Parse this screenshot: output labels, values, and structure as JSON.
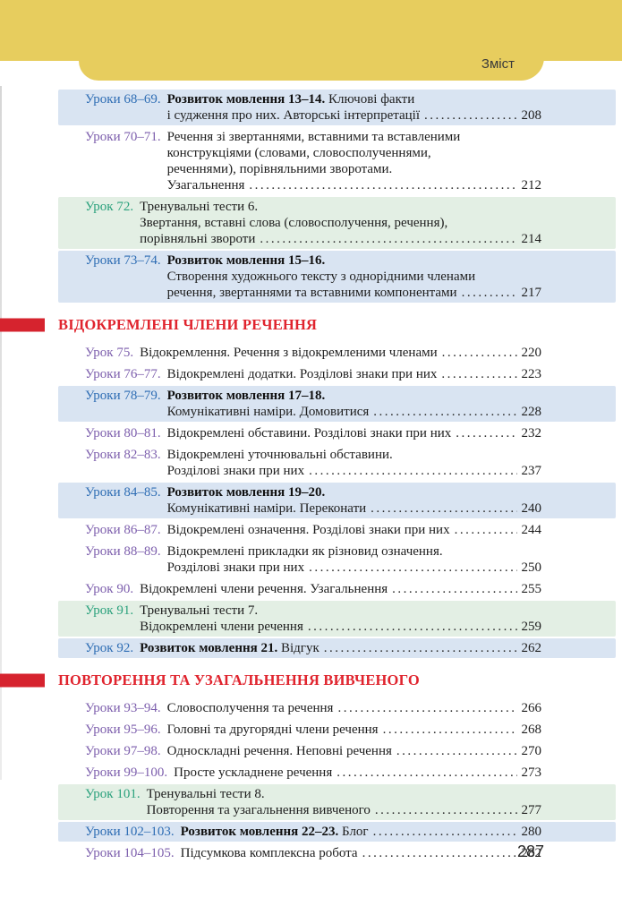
{
  "header": {
    "tab_label": "Зміст"
  },
  "colors": {
    "band_yellow": "#e7cd5e",
    "heading_red": "#e0242e",
    "marker_red": "#d6232e",
    "label_blue": "#2e6db4",
    "label_green": "#2aa17c",
    "label_purple": "#7d5fad",
    "band_blue": "#d9e4f2",
    "band_green": "#e3efe4"
  },
  "toc": {
    "groups": [
      {
        "heading": null,
        "entries": [
          {
            "label": "Уроки 68–69.",
            "type": "rm",
            "page": "208",
            "lines": [
              [
                {
                  "t": "Розвиток мовлення 13–14.",
                  "b": true
                },
                {
                  "t": " Ключові факти",
                  "b": false
                }
              ],
              [
                {
                  "t": "і судження про них. Авторські інтерпретації",
                  "b": false
                }
              ]
            ]
          },
          {
            "label": "Уроки 70–71.",
            "type": "plain",
            "page": "212",
            "lines": [
              [
                {
                  "t": "Речення зі звертаннями, вставними та вставленими",
                  "b": false
                }
              ],
              [
                {
                  "t": "конструкціями (словами, словосполученнями,",
                  "b": false
                }
              ],
              [
                {
                  "t": "реченнями), порівняльними зворотами.",
                  "b": false
                }
              ],
              [
                {
                  "t": "Узагальнення",
                  "b": false
                }
              ]
            ]
          },
          {
            "label": "Урок 72.",
            "type": "test",
            "page": "214",
            "lines": [
              [
                {
                  "t": "Тренувальні тести 6.",
                  "b": false
                }
              ],
              [
                {
                  "t": "Звертання, вставні слова (словосполучення, речення),",
                  "b": false
                }
              ],
              [
                {
                  "t": "порівняльні звороти",
                  "b": false
                }
              ]
            ]
          },
          {
            "label": "Уроки 73–74.",
            "type": "rm",
            "page": "217",
            "lines": [
              [
                {
                  "t": "Розвиток мовлення 15–16.",
                  "b": true
                }
              ],
              [
                {
                  "t": "Створення художнього тексту з однорідними членами",
                  "b": false
                }
              ],
              [
                {
                  "t": "речення, звертаннями та вставними компонентами",
                  "b": false
                }
              ]
            ]
          }
        ]
      },
      {
        "heading": "ВІДОКРЕМЛЕНІ ЧЛЕНИ РЕЧЕННЯ",
        "entries": [
          {
            "label": "Урок 75.",
            "type": "plain",
            "page": "220",
            "lines": [
              [
                {
                  "t": "Відокремлення. Речення з відокремленими членами",
                  "b": false
                }
              ]
            ]
          },
          {
            "label": "Уроки 76–77.",
            "type": "plain",
            "page": "223",
            "lines": [
              [
                {
                  "t": "Відокремлені додатки. Розділові знаки при них",
                  "b": false
                }
              ]
            ]
          },
          {
            "label": "Уроки 78–79.",
            "type": "rm",
            "page": "228",
            "lines": [
              [
                {
                  "t": "Розвиток мовлення 17–18.",
                  "b": true
                }
              ],
              [
                {
                  "t": "Комунікативні наміри. Домовитися",
                  "b": false
                }
              ]
            ]
          },
          {
            "label": "Уроки 80–81.",
            "type": "plain",
            "page": "232",
            "lines": [
              [
                {
                  "t": "Відокремлені обставини. Розділові знаки при них",
                  "b": false
                }
              ]
            ]
          },
          {
            "label": "Уроки 82–83.",
            "type": "plain",
            "page": "237",
            "lines": [
              [
                {
                  "t": "Відокремлені уточнювальні обставини.",
                  "b": false
                }
              ],
              [
                {
                  "t": "Розділові знаки при них",
                  "b": false
                }
              ]
            ]
          },
          {
            "label": "Уроки 84–85.",
            "type": "rm",
            "page": "240",
            "lines": [
              [
                {
                  "t": "Розвиток мовлення 19–20.",
                  "b": true
                }
              ],
              [
                {
                  "t": "Комунікативні наміри. Переконати",
                  "b": false
                }
              ]
            ]
          },
          {
            "label": "Уроки 86–87.",
            "type": "plain",
            "page": "244",
            "lines": [
              [
                {
                  "t": "Відокремлені означення. Розділові знаки при них",
                  "b": false
                }
              ]
            ]
          },
          {
            "label": "Уроки 88–89.",
            "type": "plain",
            "page": "250",
            "lines": [
              [
                {
                  "t": "Відокремлені прикладки як різновид означення.",
                  "b": false
                }
              ],
              [
                {
                  "t": "Розділові знаки при них",
                  "b": false
                }
              ]
            ]
          },
          {
            "label": "Урок 90.",
            "type": "plain",
            "page": "255",
            "lines": [
              [
                {
                  "t": "Відокремлені члени речення. Узагальнення",
                  "b": false
                }
              ]
            ]
          },
          {
            "label": "Урок 91.",
            "type": "test",
            "page": "259",
            "lines": [
              [
                {
                  "t": "Тренувальні тести 7.",
                  "b": false
                }
              ],
              [
                {
                  "t": "Відокремлені члени речення",
                  "b": false
                }
              ]
            ]
          },
          {
            "label": "Урок 92.",
            "type": "rm",
            "page": "262",
            "lines": [
              [
                {
                  "t": "Розвиток мовлення 21.",
                  "b": true
                },
                {
                  "t": " Відгук",
                  "b": false
                }
              ]
            ]
          }
        ]
      },
      {
        "heading": "ПОВТОРЕННЯ ТА УЗАГАЛЬНЕННЯ ВИВЧЕНОГО",
        "entries": [
          {
            "label": "Уроки 93–94.",
            "type": "plain",
            "page": "266",
            "lines": [
              [
                {
                  "t": "Словосполучення та речення",
                  "b": false
                }
              ]
            ]
          },
          {
            "label": "Уроки 95–96.",
            "type": "plain",
            "page": "268",
            "lines": [
              [
                {
                  "t": "Головні та другорядні члени речення",
                  "b": false
                }
              ]
            ]
          },
          {
            "label": "Уроки 97–98.",
            "type": "plain",
            "page": "270",
            "lines": [
              [
                {
                  "t": "Односкладні речення. Неповні речення",
                  "b": false
                }
              ]
            ]
          },
          {
            "label": "Уроки 99–100.",
            "type": "plain",
            "page": "273",
            "lines": [
              [
                {
                  "t": "Просте ускладнене речення",
                  "b": false
                }
              ]
            ]
          },
          {
            "label": "Урок 101.",
            "type": "test",
            "page": "277",
            "lines": [
              [
                {
                  "t": "Тренувальні тести 8.",
                  "b": false
                }
              ],
              [
                {
                  "t": "Повторення та узагальнення вивченого",
                  "b": false
                }
              ]
            ]
          },
          {
            "label": "Уроки 102–103.",
            "type": "rm",
            "page": "280",
            "lines": [
              [
                {
                  "t": "Розвиток мовлення 22–23.",
                  "b": true
                },
                {
                  "t": " Блог",
                  "b": false
                }
              ]
            ]
          },
          {
            "label": "Уроки 104–105.",
            "type": "plain",
            "page": "282",
            "lines": [
              [
                {
                  "t": "Підсумкова комплексна робота",
                  "b": false
                }
              ]
            ]
          }
        ]
      }
    ]
  },
  "footer": {
    "page_number": "287"
  }
}
